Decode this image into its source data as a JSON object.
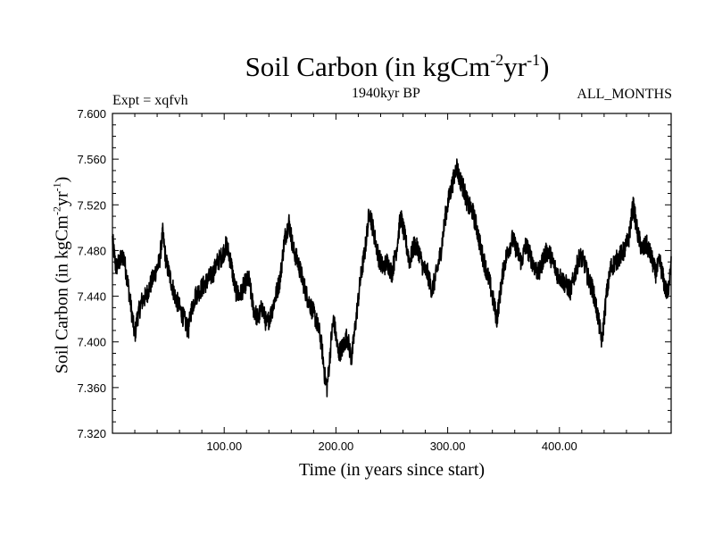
{
  "chart_data": {
    "type": "line",
    "title": "Soil Carbon (in kgCm",
    "title_sup1": "-2",
    "title_mid": "yr",
    "title_sup2": "-1",
    "title_end": ")",
    "subtitle": "1940kyr BP",
    "experiment": "Expt = xqfvh",
    "months_label": "ALL_MONTHS",
    "xlabel": "Time (in years since start)",
    "ylabel_main": "Soil Carbon (in kgCm",
    "ylabel_sup1": "-2",
    "ylabel_mid": "yr",
    "ylabel_sup2": "-1",
    "ylabel_end": ")",
    "xlim": [
      0,
      500
    ],
    "ylim": [
      7.32,
      7.6
    ],
    "x_ticks": [
      100,
      200,
      300,
      400
    ],
    "x_tick_labels": [
      "100.00",
      "200.00",
      "300.00",
      "400.00"
    ],
    "y_ticks": [
      7.32,
      7.36,
      7.4,
      7.44,
      7.48,
      7.52,
      7.56,
      7.6
    ],
    "y_tick_labels": [
      "7.320",
      "7.360",
      "7.400",
      "7.440",
      "7.480",
      "7.520",
      "7.560",
      "7.600"
    ],
    "series": [
      {
        "name": "Soil Carbon",
        "color": "#000000",
        "x": [
          0,
          3,
          6,
          10,
          14,
          18,
          20,
          22,
          26,
          30,
          34,
          38,
          42,
          45,
          48,
          52,
          56,
          60,
          64,
          68,
          70,
          74,
          78,
          82,
          86,
          90,
          94,
          98,
          102,
          106,
          110,
          114,
          118,
          122,
          126,
          130,
          134,
          138,
          142,
          146,
          150,
          154,
          158,
          162,
          166,
          170,
          174,
          178,
          182,
          186,
          188,
          190,
          192,
          194,
          196,
          198,
          202,
          206,
          210,
          214,
          218,
          222,
          226,
          230,
          234,
          238,
          242,
          246,
          250,
          254,
          258,
          262,
          266,
          270,
          274,
          278,
          282,
          286,
          290,
          294,
          298,
          302,
          306,
          308,
          310,
          314,
          318,
          322,
          326,
          330,
          334,
          338,
          342,
          344,
          346,
          350,
          354,
          358,
          362,
          366,
          370,
          374,
          378,
          382,
          386,
          390,
          394,
          398,
          402,
          406,
          410,
          414,
          418,
          422,
          426,
          430,
          434,
          438,
          442,
          446,
          450,
          454,
          458,
          462,
          466,
          470,
          474,
          478,
          482,
          486,
          490,
          494,
          497,
          500
        ],
        "y": [
          7.49,
          7.465,
          7.47,
          7.475,
          7.45,
          7.42,
          7.405,
          7.42,
          7.435,
          7.44,
          7.45,
          7.46,
          7.47,
          7.495,
          7.47,
          7.455,
          7.44,
          7.43,
          7.42,
          7.41,
          7.425,
          7.44,
          7.445,
          7.45,
          7.455,
          7.46,
          7.47,
          7.475,
          7.485,
          7.47,
          7.445,
          7.44,
          7.45,
          7.455,
          7.43,
          7.42,
          7.43,
          7.415,
          7.425,
          7.44,
          7.455,
          7.49,
          7.505,
          7.48,
          7.47,
          7.455,
          7.44,
          7.43,
          7.42,
          7.405,
          7.39,
          7.37,
          7.36,
          7.38,
          7.405,
          7.42,
          7.39,
          7.395,
          7.405,
          7.385,
          7.42,
          7.455,
          7.48,
          7.515,
          7.495,
          7.475,
          7.465,
          7.47,
          7.46,
          7.48,
          7.51,
          7.49,
          7.47,
          7.485,
          7.48,
          7.465,
          7.46,
          7.445,
          7.46,
          7.48,
          7.51,
          7.53,
          7.545,
          7.555,
          7.545,
          7.535,
          7.52,
          7.515,
          7.5,
          7.48,
          7.465,
          7.45,
          7.43,
          7.42,
          7.435,
          7.465,
          7.48,
          7.49,
          7.48,
          7.47,
          7.485,
          7.475,
          7.465,
          7.46,
          7.475,
          7.48,
          7.47,
          7.46,
          7.455,
          7.45,
          7.445,
          7.46,
          7.475,
          7.47,
          7.455,
          7.445,
          7.425,
          7.4,
          7.44,
          7.465,
          7.47,
          7.475,
          7.48,
          7.49,
          7.52,
          7.495,
          7.48,
          7.485,
          7.475,
          7.46,
          7.47,
          7.45,
          7.44,
          7.475
        ]
      }
    ]
  }
}
